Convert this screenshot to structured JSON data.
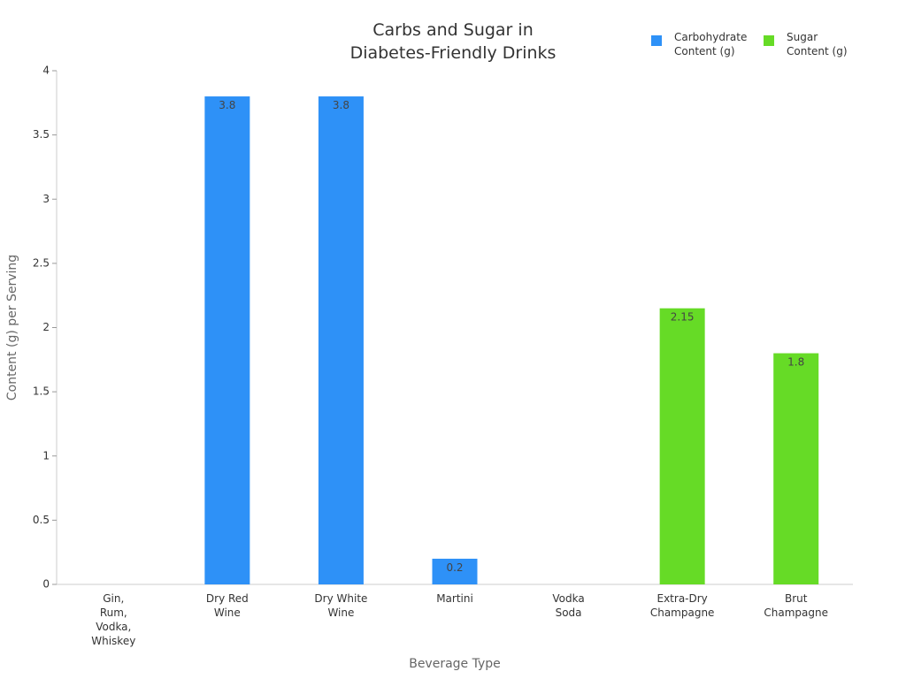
{
  "chart_data": {
    "type": "bar",
    "title": [
      "Carbs and Sugar in",
      "Diabetes-Friendly Drinks"
    ],
    "xlabel": "Beverage Type",
    "ylabel": "Content (g) per Serving",
    "ylim": [
      0,
      4
    ],
    "yticks": [
      0,
      0.5,
      1,
      1.5,
      2,
      2.5,
      3,
      3.5,
      4
    ],
    "ytick_labels": [
      "0",
      "0.5",
      "1",
      "1.5",
      "2",
      "2.5",
      "3",
      "3.5",
      "4"
    ],
    "grid": false,
    "legend_position": "top-right",
    "categories": [
      [
        "Gin,",
        "Rum,",
        "Vodka,",
        "Whiskey"
      ],
      [
        "Dry Red",
        "Wine"
      ],
      [
        "Dry White",
        "Wine"
      ],
      [
        "Martini"
      ],
      [
        "Vodka",
        "Soda"
      ],
      [
        "Extra-Dry",
        "Champagne"
      ],
      [
        "Brut",
        "Champagne"
      ]
    ],
    "series": [
      {
        "name": [
          "Carbohydrate",
          "Content (g)"
        ],
        "color": "#2e91f7",
        "values": [
          0,
          3.8,
          3.8,
          0.2,
          0,
          null,
          null
        ],
        "labels": [
          "",
          "3.8",
          "3.8",
          "0.2",
          "",
          "",
          ""
        ]
      },
      {
        "name": [
          "Sugar",
          "Content (g)"
        ],
        "color": "#66db26",
        "values": [
          null,
          null,
          null,
          null,
          null,
          2.15,
          1.8
        ],
        "labels": [
          "",
          "",
          "",
          "",
          "",
          "2.15",
          "1.8"
        ]
      }
    ]
  }
}
